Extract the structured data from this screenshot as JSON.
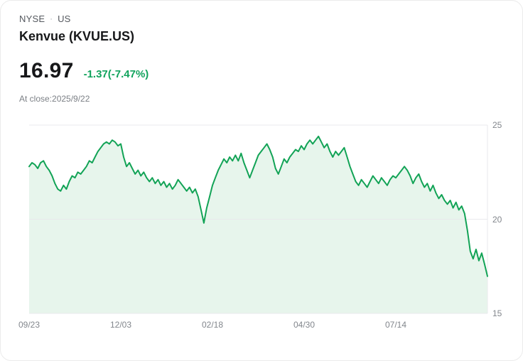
{
  "header": {
    "exchange": "NYSE",
    "separator": "·",
    "region": "US",
    "company": "Kenvue (KVUE.US)",
    "price": "16.97",
    "change": "-1.37(-7.47%)",
    "at_close": "At close:2025/9/22"
  },
  "colors": {
    "line": "#12a356",
    "area_fill": "#e7f5ec",
    "change_text": "#10a35c",
    "grid": "#e9eaec",
    "axis_text": "#82868c"
  },
  "chart_data": {
    "type": "area",
    "title": "Kenvue (KVUE.US)",
    "ylim": [
      15,
      25
    ],
    "y_ticks": [
      25,
      20,
      15
    ],
    "x_tick_labels": [
      "09/23",
      "12/03",
      "02/18",
      "04/30",
      "07/14"
    ],
    "x_tick_positions": [
      0,
      0.2,
      0.4,
      0.6,
      0.8
    ],
    "grid": true,
    "legend": false,
    "values": [
      22.8,
      23.0,
      22.9,
      22.7,
      23.0,
      23.1,
      22.8,
      22.6,
      22.3,
      21.9,
      21.6,
      21.5,
      21.8,
      21.6,
      22.0,
      22.3,
      22.2,
      22.5,
      22.4,
      22.6,
      22.8,
      23.1,
      23.0,
      23.3,
      23.6,
      23.8,
      24.0,
      24.1,
      24.0,
      24.2,
      24.1,
      23.9,
      24.0,
      23.3,
      22.8,
      23.0,
      22.7,
      22.4,
      22.6,
      22.3,
      22.5,
      22.2,
      22.0,
      22.2,
      21.9,
      22.1,
      21.8,
      22.0,
      21.7,
      21.9,
      21.6,
      21.8,
      22.1,
      21.9,
      21.7,
      21.5,
      21.7,
      21.4,
      21.6,
      21.2,
      20.5,
      19.8,
      20.6,
      21.2,
      21.8,
      22.2,
      22.6,
      22.9,
      23.2,
      23.0,
      23.3,
      23.1,
      23.4,
      23.1,
      23.5,
      23.0,
      22.6,
      22.2,
      22.6,
      23.0,
      23.4,
      23.6,
      23.8,
      24.0,
      23.7,
      23.3,
      22.7,
      22.4,
      22.8,
      23.2,
      23.0,
      23.3,
      23.5,
      23.7,
      23.6,
      23.9,
      23.7,
      24.0,
      24.2,
      24.0,
      24.2,
      24.4,
      24.1,
      23.8,
      24.0,
      23.6,
      23.3,
      23.6,
      23.4,
      23.6,
      23.8,
      23.3,
      22.8,
      22.4,
      22.0,
      21.8,
      22.1,
      21.9,
      21.7,
      22.0,
      22.3,
      22.1,
      21.9,
      22.2,
      22.0,
      21.8,
      22.1,
      22.3,
      22.2,
      22.4,
      22.6,
      22.8,
      22.6,
      22.3,
      21.9,
      22.2,
      22.4,
      22.0,
      21.7,
      21.9,
      21.5,
      21.8,
      21.4,
      21.1,
      21.3,
      21.0,
      20.8,
      21.0,
      20.6,
      20.9,
      20.5,
      20.7,
      20.3,
      19.4,
      18.3,
      17.9,
      18.4,
      17.8,
      18.2,
      17.6,
      16.97
    ]
  }
}
